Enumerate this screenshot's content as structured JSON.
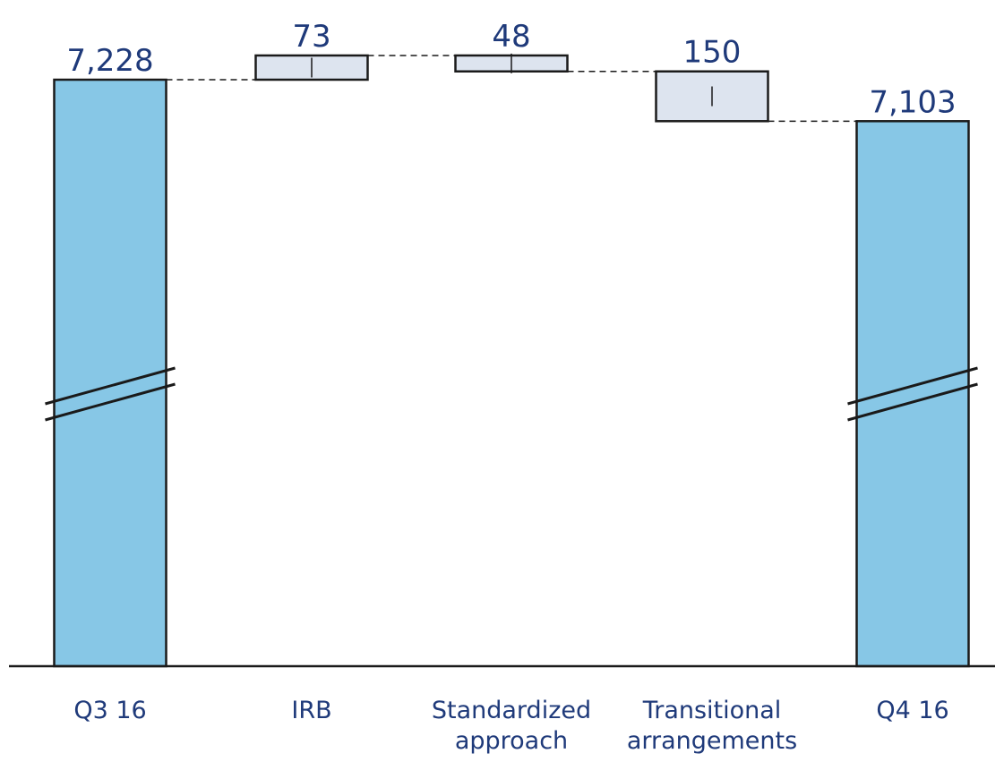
{
  "chart_data": {
    "type": "bar",
    "subtype": "waterfall",
    "categories": [
      [
        "Q3 16"
      ],
      [
        "IRB"
      ],
      [
        "Standardized",
        "approach"
      ],
      [
        "Transitional",
        "arrangements"
      ],
      [
        "Q4 16"
      ]
    ],
    "series": [
      {
        "values": [
          7228,
          73,
          48,
          150,
          7103
        ],
        "value_labels": [
          "7,228",
          "73",
          "48",
          "150",
          "7,103"
        ],
        "kinds": [
          "total",
          "increase",
          "decrease",
          "decrease",
          "total"
        ]
      }
    ],
    "axis_break": true,
    "grid": false,
    "legend": "none",
    "colors": {
      "total": "#87c7e6",
      "change": "#dde4ef",
      "outline": "#1a1a1a",
      "text": "#1f3a7a"
    }
  }
}
